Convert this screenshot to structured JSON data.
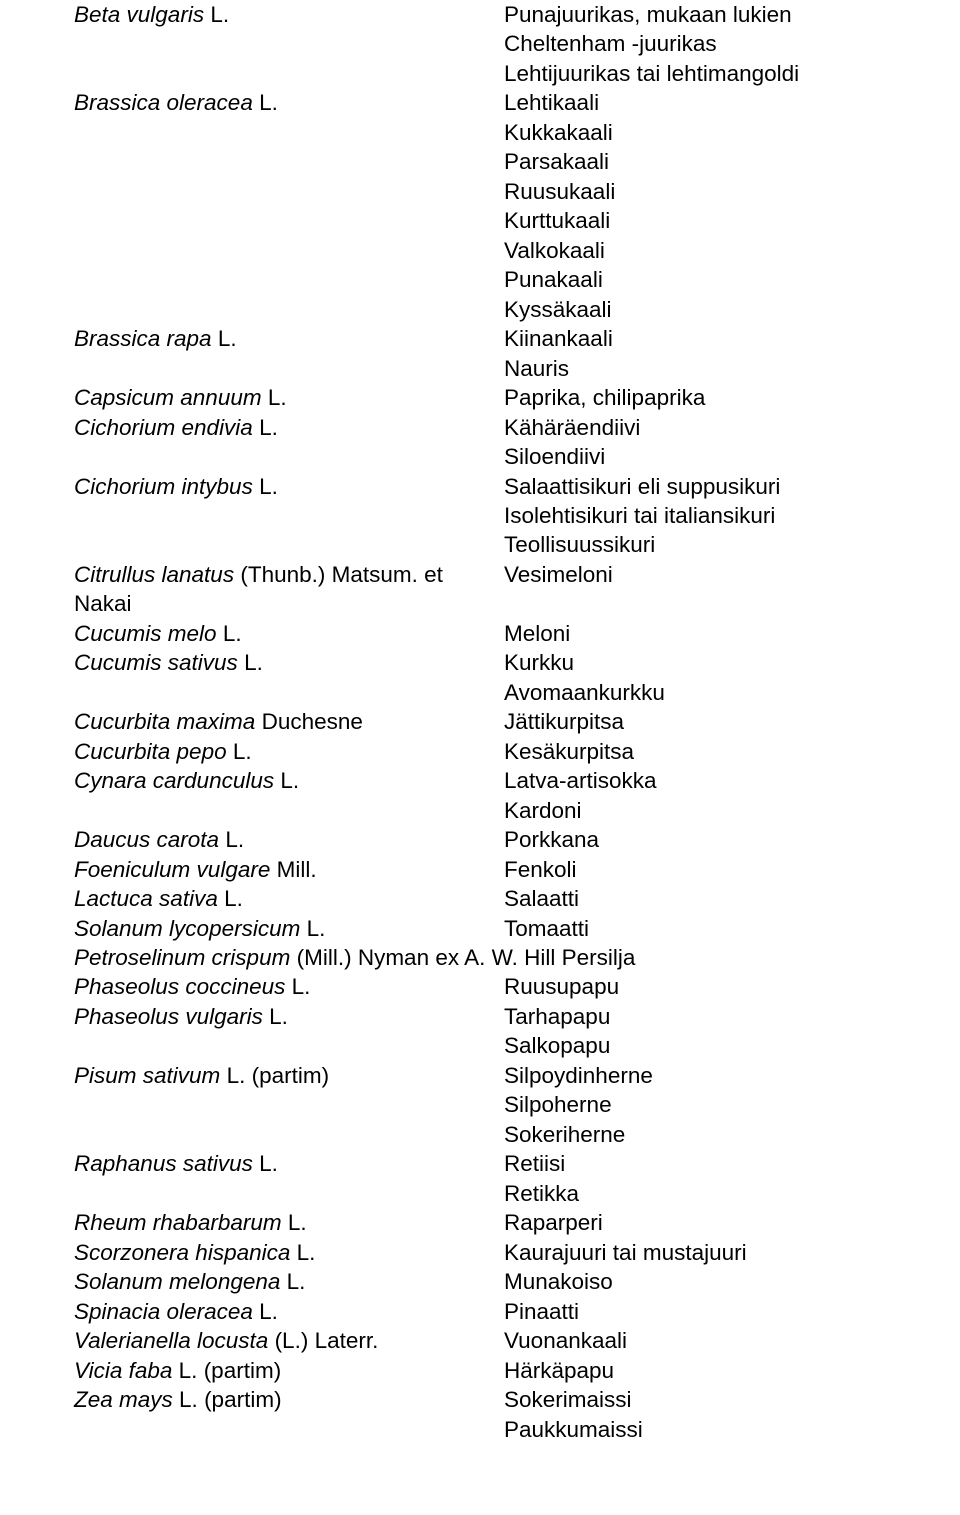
{
  "rows": [
    {
      "left": {
        "sci": "Beta vulgaris",
        "auth": "L."
      },
      "right": [
        "Punajuurikas, mukaan lukien",
        "Cheltenham -juurikas",
        "Lehtijuurikas tai lehtimangoldi"
      ]
    },
    {
      "left": {
        "sci": "Brassica oleracea",
        "auth": "L."
      },
      "right": [
        "Lehtikaali",
        "Kukkakaali",
        "Parsakaali",
        "Ruusukaali",
        "Kurttukaali",
        "Valkokaali",
        "Punakaali",
        "Kyssäkaali"
      ]
    },
    {
      "left": {
        "sci": "Brassica rapa",
        "auth": "L."
      },
      "right": [
        "Kiinankaali",
        "Nauris"
      ]
    },
    {
      "left": {
        "sci": "Capsicum annuum",
        "auth": "L."
      },
      "right": [
        "Paprika, chilipaprika"
      ]
    },
    {
      "left": {
        "sci": "Cichorium endivia",
        "auth": "L."
      },
      "right": [
        "Kähäräendiivi",
        "Siloendiivi"
      ]
    },
    {
      "left": {
        "sci": "Cichorium intybus",
        "auth": "L."
      },
      "right": [
        "Salaattisikuri eli suppusikuri",
        "Isolehtisikuri tai italiansikuri",
        "Teollisuussikuri"
      ]
    },
    {
      "left": {
        "sci": "Citrullus lanatus",
        "auth": "(Thunb.) Matsum. et Nakai"
      },
      "right": [
        "Vesimeloni"
      ]
    },
    {
      "left": {
        "sci": "Cucumis melo",
        "auth": "L."
      },
      "right": [
        "Meloni"
      ]
    },
    {
      "left": {
        "sci": "Cucumis sativus",
        "auth": "L."
      },
      "right": [
        "Kurkku",
        "Avomaankurkku"
      ]
    },
    {
      "left": {
        "sci": "Cucurbita maxima",
        "auth": "Duchesne"
      },
      "right": [
        "Jättikurpitsa"
      ]
    },
    {
      "left": {
        "sci": "Cucurbita pepo",
        "auth": "L."
      },
      "right": [
        "Kesäkurpitsa"
      ]
    },
    {
      "left": {
        "sci": "Cynara cardunculus",
        "auth": "L."
      },
      "right": [
        "Latva-artisokka",
        "Kardoni"
      ]
    },
    {
      "left": {
        "sci": "Daucus carota",
        "auth": "L."
      },
      "right": [
        "Porkkana"
      ]
    },
    {
      "left": {
        "sci": "Foeniculum vulgare",
        "auth": "Mill."
      },
      "right": [
        "Fenkoli"
      ]
    },
    {
      "left": {
        "sci": "Lactuca sativa",
        "auth": "L."
      },
      "right": [
        "Salaatti"
      ]
    },
    {
      "left": {
        "sci": "Solanum lycopersicum",
        "auth": "L."
      },
      "right": [
        "Tomaatti"
      ]
    },
    {
      "left": {
        "sci": "Petroselinum crispum",
        "auth": "(Mill.) Nyman ex A. W. Hill"
      },
      "right": [
        "Persilja"
      ],
      "inline": true
    },
    {
      "left": {
        "sci": "Phaseolus coccineus",
        "auth": "L."
      },
      "right": [
        "Ruusupapu"
      ]
    },
    {
      "left": {
        "sci": "Phaseolus vulgaris",
        "auth": "L."
      },
      "right": [
        "Tarhapapu",
        "Salkopapu"
      ]
    },
    {
      "left": {
        "sci": "Pisum sativum",
        "auth": "L. (partim)"
      },
      "right": [
        "Silpoydinherne",
        "Silpoherne",
        "Sokeriherne"
      ]
    },
    {
      "left": {
        "sci": "Raphanus sativus",
        "auth": "L."
      },
      "right": [
        "Retiisi",
        "Retikka"
      ]
    },
    {
      "left": {
        "sci": "Rheum rhabarbarum",
        "auth": "L."
      },
      "right": [
        "Raparperi"
      ]
    },
    {
      "left": {
        "sci": "Scorzonera hispanica",
        "auth": "L."
      },
      "right": [
        "Kaurajuuri tai mustajuuri"
      ]
    },
    {
      "left": {
        "sci": "Solanum melongena",
        "auth": "L."
      },
      "right": [
        "Munakoiso"
      ]
    },
    {
      "left": {
        "sci": "Spinacia oleracea",
        "auth": "L."
      },
      "right": [
        "Pinaatti"
      ]
    },
    {
      "left": {
        "sci": "Valerianella locusta",
        "auth": "(L.) Laterr."
      },
      "right": [
        "Vuonankaali"
      ]
    },
    {
      "left": {
        "sci": "Vicia faba",
        "auth": "L. (partim)"
      },
      "right": [
        "Härkäpapu"
      ]
    },
    {
      "left": {
        "sci": "Zea mays",
        "auth": "L. (partim)"
      },
      "right": [
        "Sokerimaissi",
        "Paukkumaissi"
      ]
    }
  ]
}
